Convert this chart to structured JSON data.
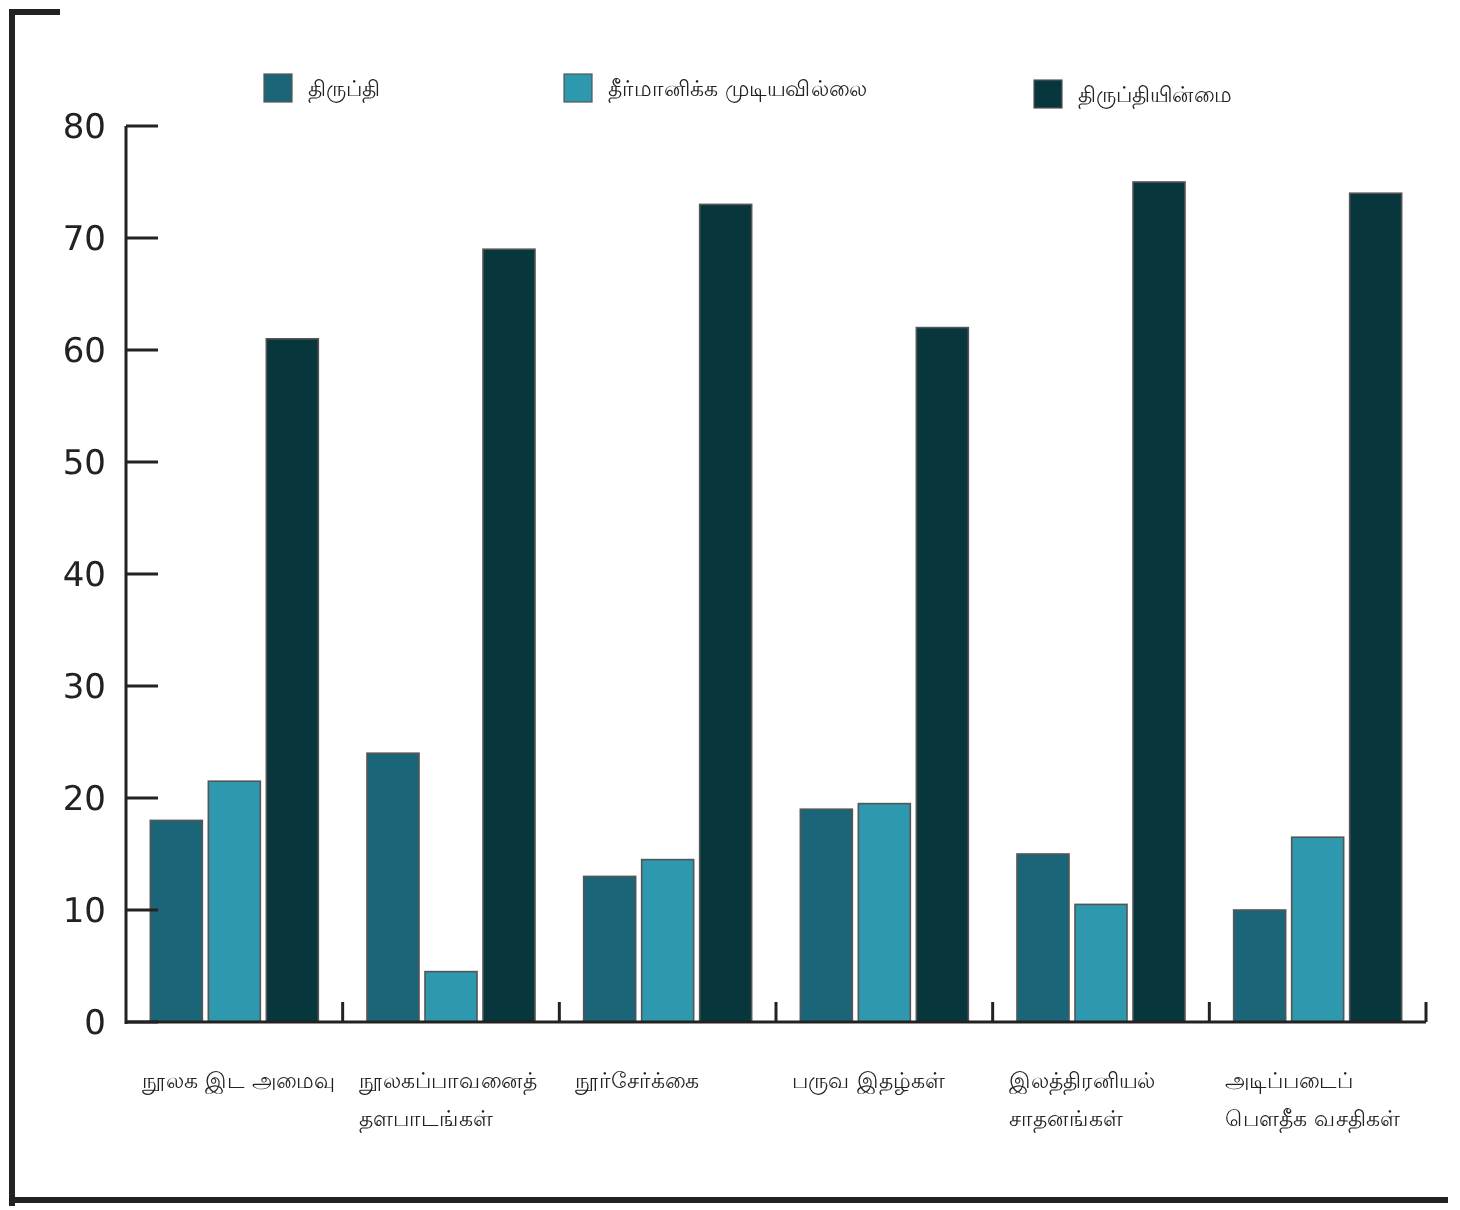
{
  "chart_data": {
    "type": "bar",
    "categories": [
      "நூலக இட அமைவு",
      "நூலகப்பாவனைத்\nதளபாடங்கள்",
      "நூர்சேர்க்கை",
      "பருவ இதழ்கள்",
      "இலத்திரனியல்\nசாதனங்கள்",
      "அடிப்படைப்\nபௌதீக வசதிகள்"
    ],
    "series": [
      {
        "name": "திருப்தி",
        "color": "#1a6678",
        "values": [
          18,
          24,
          13,
          19,
          15,
          10
        ]
      },
      {
        "name": "தீர்மானிக்க முடியவில்லை",
        "color": "#2e98ae",
        "values": [
          21.5,
          4.5,
          14.5,
          19.5,
          10.5,
          16.5
        ]
      },
      {
        "name": "திருப்தியின்மை",
        "color": "#07363c",
        "values": [
          61,
          69,
          73,
          62,
          75,
          74
        ]
      }
    ],
    "ylim": [
      0,
      80
    ],
    "yticks": [
      0,
      10,
      20,
      30,
      40,
      50,
      60,
      70,
      80
    ],
    "grid": false,
    "legend": "top"
  }
}
